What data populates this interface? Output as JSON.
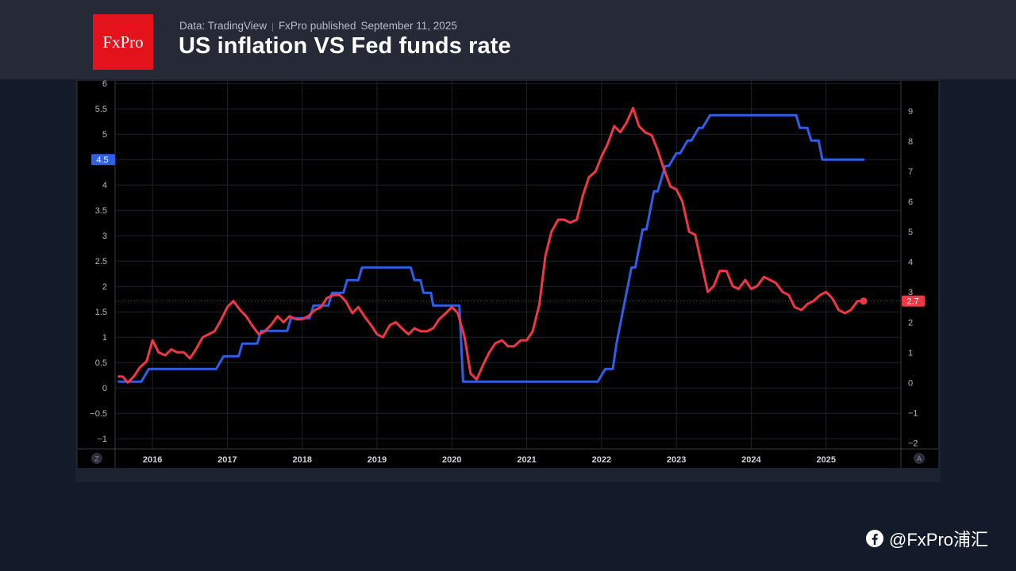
{
  "header": {
    "logo_text": "FxPro",
    "source": "Data: TradingView",
    "publisher": "FxPro published",
    "published_date": "September 11, 2025",
    "title": "US inflation VS Fed funds rate"
  },
  "watermark": {
    "icon": "facebook-icon",
    "text": "@FxPro浦汇"
  },
  "colors": {
    "fed_funds_series": "#2f5ee8",
    "inflation_series": "#f23645",
    "logo_background": "#e3121b",
    "chart_background": "#000000"
  },
  "chart_data": {
    "type": "line",
    "x_tick_labels": [
      "2016",
      "2017",
      "2018",
      "2019",
      "2020",
      "2021",
      "2022",
      "2023",
      "2024",
      "2025"
    ],
    "left_axis": {
      "ticks": [
        "6",
        "5.5",
        "5",
        "4.5",
        "4",
        "3.5",
        "3",
        "2.5",
        "2",
        "1.5",
        "1",
        "0.5",
        "0",
        "−0.5",
        "−1"
      ],
      "range": [
        -1.2,
        6.05
      ]
    },
    "right_axis": {
      "ticks": [
        "9",
        "8",
        "7",
        "6",
        "5",
        "4",
        "3",
        "2",
        "1",
        "0",
        "−1",
        "−2"
      ],
      "range": [
        -2.2,
        10.0
      ]
    },
    "last_value_labels": {
      "left": "4.5",
      "right": "2.7"
    },
    "left_axis_badge": "Z",
    "right_axis_badge": "A",
    "grid": true,
    "series": [
      {
        "axis": "left",
        "color": "#2f5ee8",
        "x": [
          2015.55,
          2015.85,
          2015.95,
          2016.85,
          2016.95,
          2017.15,
          2017.2,
          2017.4,
          2017.45,
          2017.8,
          2017.85,
          2017.95,
          2018.0,
          2018.1,
          2018.15,
          2018.35,
          2018.4,
          2018.55,
          2018.6,
          2018.75,
          2018.8,
          2018.92,
          2018.95,
          2019.45,
          2019.5,
          2019.58,
          2019.62,
          2019.72,
          2019.75,
          2020.1,
          2020.15,
          2020.3,
          2021.95,
          2022.05,
          2022.15,
          2022.2,
          2022.3,
          2022.4,
          2022.45,
          2022.55,
          2022.6,
          2022.7,
          2022.75,
          2022.85,
          2022.9,
          2023.0,
          2023.05,
          2023.15,
          2023.2,
          2023.3,
          2023.35,
          2023.45,
          2023.5,
          2024.6,
          2024.65,
          2024.75,
          2024.8,
          2024.9,
          2024.95,
          2025.5
        ],
        "y": [
          0.125,
          0.125,
          0.375,
          0.375,
          0.625,
          0.625,
          0.875,
          0.875,
          1.125,
          1.125,
          1.375,
          1.375,
          1.375,
          1.375,
          1.625,
          1.625,
          1.875,
          1.875,
          2.125,
          2.125,
          2.375,
          2.375,
          2.375,
          2.375,
          2.125,
          2.125,
          1.875,
          1.875,
          1.625,
          1.625,
          0.125,
          0.125,
          0.125,
          0.375,
          0.375,
          0.875,
          1.625,
          2.375,
          2.375,
          3.125,
          3.125,
          3.875,
          3.875,
          4.375,
          4.375,
          4.625,
          4.625,
          4.875,
          4.875,
          5.125,
          5.125,
          5.375,
          5.375,
          5.375,
          5.125,
          5.125,
          4.875,
          4.875,
          4.5,
          4.5
        ]
      },
      {
        "axis": "right",
        "color": "#f23645",
        "x": [
          2015.55,
          2015.6,
          2015.67,
          2015.75,
          2015.83,
          2015.92,
          2016.0,
          2016.08,
          2016.17,
          2016.25,
          2016.33,
          2016.42,
          2016.5,
          2016.58,
          2016.67,
          2016.75,
          2016.83,
          2016.92,
          2017.0,
          2017.08,
          2017.17,
          2017.25,
          2017.33,
          2017.42,
          2017.5,
          2017.58,
          2017.67,
          2017.75,
          2017.83,
          2017.92,
          2018.0,
          2018.08,
          2018.17,
          2018.25,
          2018.33,
          2018.42,
          2018.5,
          2018.58,
          2018.67,
          2018.75,
          2018.83,
          2018.92,
          2019.0,
          2019.08,
          2019.17,
          2019.25,
          2019.33,
          2019.42,
          2019.5,
          2019.58,
          2019.67,
          2019.75,
          2019.83,
          2019.92,
          2020.0,
          2020.08,
          2020.17,
          2020.25,
          2020.33,
          2020.42,
          2020.5,
          2020.58,
          2020.67,
          2020.75,
          2020.83,
          2020.92,
          2021.0,
          2021.08,
          2021.17,
          2021.25,
          2021.33,
          2021.42,
          2021.5,
          2021.58,
          2021.67,
          2021.75,
          2021.83,
          2021.92,
          2022.0,
          2022.08,
          2022.17,
          2022.25,
          2022.33,
          2022.42,
          2022.5,
          2022.58,
          2022.67,
          2022.75,
          2022.83,
          2022.92,
          2023.0,
          2023.08,
          2023.17,
          2023.25,
          2023.33,
          2023.42,
          2023.5,
          2023.58,
          2023.67,
          2023.75,
          2023.83,
          2023.92,
          2024.0,
          2024.08,
          2024.17,
          2024.25,
          2024.33,
          2024.42,
          2024.5,
          2024.58,
          2024.67,
          2024.75,
          2024.83,
          2024.92,
          2025.0,
          2025.08,
          2025.17,
          2025.25,
          2025.33,
          2025.42,
          2025.5
        ],
        "y": [
          0.2,
          0.2,
          0.0,
          0.2,
          0.5,
          0.7,
          1.4,
          1.0,
          0.9,
          1.1,
          1.0,
          1.0,
          0.8,
          1.1,
          1.5,
          1.6,
          1.7,
          2.1,
          2.5,
          2.7,
          2.4,
          2.2,
          1.9,
          1.6,
          1.7,
          1.9,
          2.2,
          2.0,
          2.2,
          2.1,
          2.1,
          2.2,
          2.4,
          2.5,
          2.8,
          2.9,
          2.9,
          2.7,
          2.3,
          2.5,
          2.2,
          1.9,
          1.6,
          1.5,
          1.9,
          2.0,
          1.8,
          1.6,
          1.8,
          1.7,
          1.7,
          1.8,
          2.1,
          2.3,
          2.5,
          2.3,
          1.5,
          0.3,
          0.1,
          0.6,
          1.0,
          1.3,
          1.4,
          1.2,
          1.2,
          1.4,
          1.4,
          1.7,
          2.6,
          4.2,
          5.0,
          5.4,
          5.4,
          5.3,
          5.4,
          6.2,
          6.8,
          7.0,
          7.5,
          7.9,
          8.5,
          8.3,
          8.6,
          9.1,
          8.5,
          8.3,
          8.2,
          7.7,
          7.1,
          6.5,
          6.4,
          6.0,
          5.0,
          4.9,
          4.0,
          3.0,
          3.2,
          3.7,
          3.7,
          3.2,
          3.1,
          3.4,
          3.1,
          3.2,
          3.5,
          3.4,
          3.3,
          3.0,
          2.9,
          2.5,
          2.4,
          2.6,
          2.7,
          2.9,
          3.0,
          2.8,
          2.4,
          2.3,
          2.4,
          2.7,
          2.7
        ]
      }
    ]
  }
}
